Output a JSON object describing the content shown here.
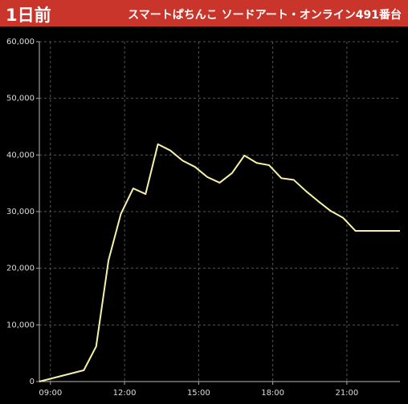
{
  "header": {
    "badge": "1日前",
    "title": "スマートぱちんこ ソードアート・オンライン491番台"
  },
  "chart_data": {
    "type": "line",
    "x": [
      8.55,
      10.35,
      10.85,
      11.35,
      11.85,
      12.35,
      12.85,
      13.35,
      13.85,
      14.35,
      14.85,
      15.35,
      15.85,
      16.35,
      16.85,
      17.35,
      17.85,
      18.35,
      18.85,
      19.35,
      19.85,
      20.35,
      20.85,
      21.35,
      23.15
    ],
    "values": [
      0,
      2000,
      6200,
      21400,
      29600,
      34100,
      33100,
      41900,
      40800,
      39000,
      37900,
      36100,
      35100,
      36800,
      39900,
      38600,
      38200,
      35900,
      35600,
      33600,
      31800,
      30100,
      28900,
      26600,
      26600
    ],
    "color": "#f7f2a8",
    "xlim": [
      8.55,
      23.15
    ],
    "xticks": [
      {
        "value": 9,
        "label": "09:00"
      },
      {
        "value": 12,
        "label": "12:00"
      },
      {
        "value": 15,
        "label": "15:00"
      },
      {
        "value": 18,
        "label": "18:00"
      },
      {
        "value": 21,
        "label": "21:00"
      }
    ],
    "ylim": [
      0,
      60000
    ],
    "yticks": [
      0,
      {
        "value": 10000,
        "label": "10,000"
      },
      {
        "value": 20000,
        "label": "20,000"
      },
      {
        "value": 30000,
        "label": "30,000"
      },
      {
        "value": 40000,
        "label": "40,000"
      },
      {
        "value": 50000,
        "label": "50,000"
      },
      {
        "value": 60000,
        "label": "60,000"
      }
    ],
    "grid": true
  }
}
